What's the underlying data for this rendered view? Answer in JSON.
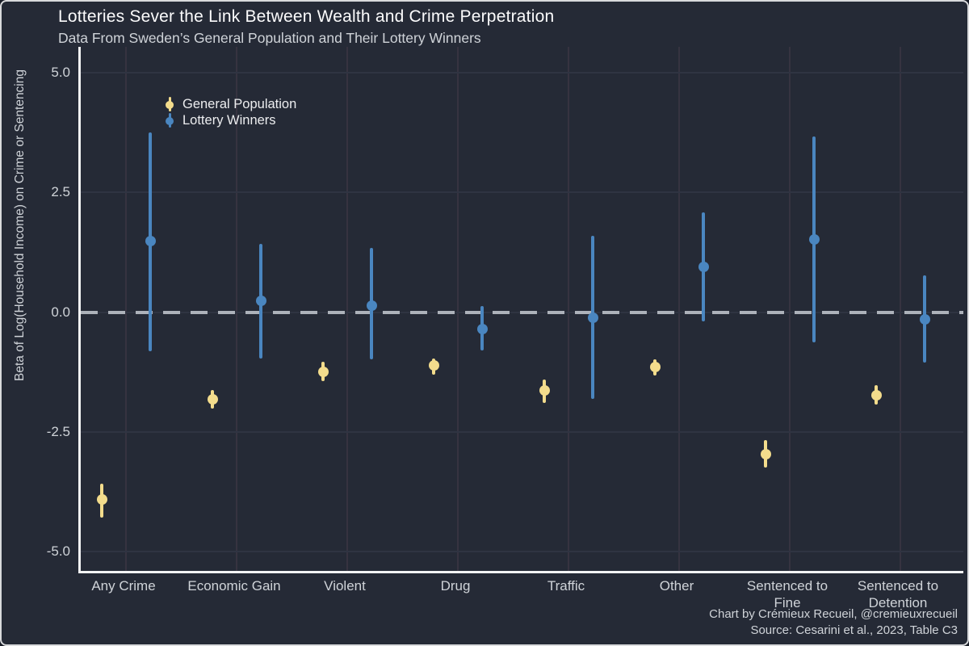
{
  "header": {
    "title": "Lotteries Sever the Link Between Wealth and Crime Perpetration",
    "subtitle": "Data From Sweden’s General Population and Their Lottery Winners"
  },
  "y_axis_title": "Beta of Log(Household Income) on Crime or Sentencing",
  "caption": {
    "line1": "Chart by Crémieux Recueil, @cremieuxrecueil",
    "line2": "Source: Cesarini et al., 2023, Table C3"
  },
  "legend": {
    "items": [
      {
        "label": "General Population",
        "color": "#F3DC8C"
      },
      {
        "label": "Lottery Winners",
        "color": "#4A86C0"
      }
    ]
  },
  "colors": {
    "background": "#252A36",
    "frame_border": "#D9DADC",
    "axis_line": "#F2F3F4",
    "grid_horizontal": "#2F3442",
    "grid_vertical": "#363340",
    "zero_dashed_line": "#ADB2BA",
    "text_primary": "#FBFBFC",
    "text_secondary": "#CFD3D8",
    "general_population": "#F3DC8C",
    "lottery_winners": "#4A86C0"
  },
  "chart_data": {
    "type": "scatter",
    "subtype": "pointrange-with-confidence-intervals",
    "title": "Lotteries Sever the Link Between Wealth and Crime Perpetration",
    "subtitle": "Data From Sweden’s General Population and Their Lottery Winners",
    "xlabel": "",
    "ylabel": "Beta of Log(Household Income) on Crime or Sentencing",
    "ylim": [
      -5.5,
      5.55
    ],
    "zero_reference_line": 0.0,
    "grid": "on",
    "legend_position": "top-left-inside",
    "categories": [
      "Any Crime",
      "Economic Gain",
      "Violent",
      "Drug",
      "Traffic",
      "Other",
      "Sentenced to Fine",
      "Sentenced to Detention"
    ],
    "category_labels": [
      "Any Crime",
      "Economic Gain",
      "Violent",
      "Drug",
      "Traffic",
      "Other",
      "Sentenced to\nFine",
      "Sentenced to\nDetention"
    ],
    "y_ticks": [
      {
        "label": "5.0",
        "value": 5.0
      },
      {
        "label": "2.5",
        "value": 2.5
      },
      {
        "label": "0.0",
        "value": 0.0
      },
      {
        "label": "-2.5",
        "value": -2.5
      },
      {
        "label": "-5.0",
        "value": -5.0
      }
    ],
    "series": [
      {
        "name": "General Population",
        "color": "#F3DC8C",
        "points": [
          {
            "category": "Any Crime",
            "est": -3.92,
            "lo": -4.3,
            "hi": -3.58
          },
          {
            "category": "Economic Gain",
            "est": -1.82,
            "lo": -2.02,
            "hi": -1.62
          },
          {
            "category": "Violent",
            "est": -1.24,
            "lo": -1.44,
            "hi": -1.04
          },
          {
            "category": "Drug",
            "est": -1.12,
            "lo": -1.31,
            "hi": -0.97
          },
          {
            "category": "Traffic",
            "est": -1.64,
            "lo": -1.9,
            "hi": -1.41
          },
          {
            "category": "Other",
            "est": -1.15,
            "lo": -1.33,
            "hi": -0.98
          },
          {
            "category": "Sentenced to Fine",
            "est": -2.96,
            "lo": -3.25,
            "hi": -2.67
          },
          {
            "category": "Sentenced to Detention",
            "est": -1.73,
            "lo": -1.93,
            "hi": -1.52
          }
        ]
      },
      {
        "name": "Lottery Winners",
        "color": "#4A86C0",
        "points": [
          {
            "category": "Any Crime",
            "est": 1.48,
            "lo": -0.81,
            "hi": 3.75
          },
          {
            "category": "Economic Gain",
            "est": 0.23,
            "lo": -0.97,
            "hi": 1.43
          },
          {
            "category": "Violent",
            "est": 0.14,
            "lo": -0.99,
            "hi": 1.34
          },
          {
            "category": "Drug",
            "est": -0.35,
            "lo": -0.8,
            "hi": 0.12
          },
          {
            "category": "Traffic",
            "est": -0.11,
            "lo": -1.81,
            "hi": 1.6
          },
          {
            "category": "Other",
            "est": 0.94,
            "lo": -0.2,
            "hi": 2.09
          },
          {
            "category": "Sentenced to Fine",
            "est": 1.52,
            "lo": -0.64,
            "hi": 3.67
          },
          {
            "category": "Sentenced to Detention",
            "est": -0.15,
            "lo": -1.05,
            "hi": 0.76
          }
        ]
      }
    ]
  }
}
